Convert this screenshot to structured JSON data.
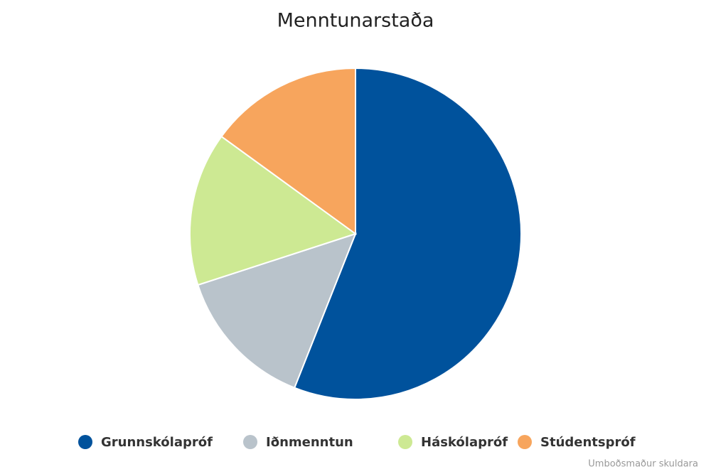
{
  "chart_data": {
    "type": "pie",
    "title": "Menntunarstaða",
    "categories": [
      "Grunnskólapróf",
      "Iðnmenntun",
      "Háskólapróf",
      "Stúdentspróf"
    ],
    "values": [
      56,
      14,
      15,
      15
    ],
    "colors": [
      "#00529c",
      "#b9c3cb",
      "#cde993",
      "#f7a55d"
    ],
    "credit": "Umboðsmaður skuldara"
  }
}
